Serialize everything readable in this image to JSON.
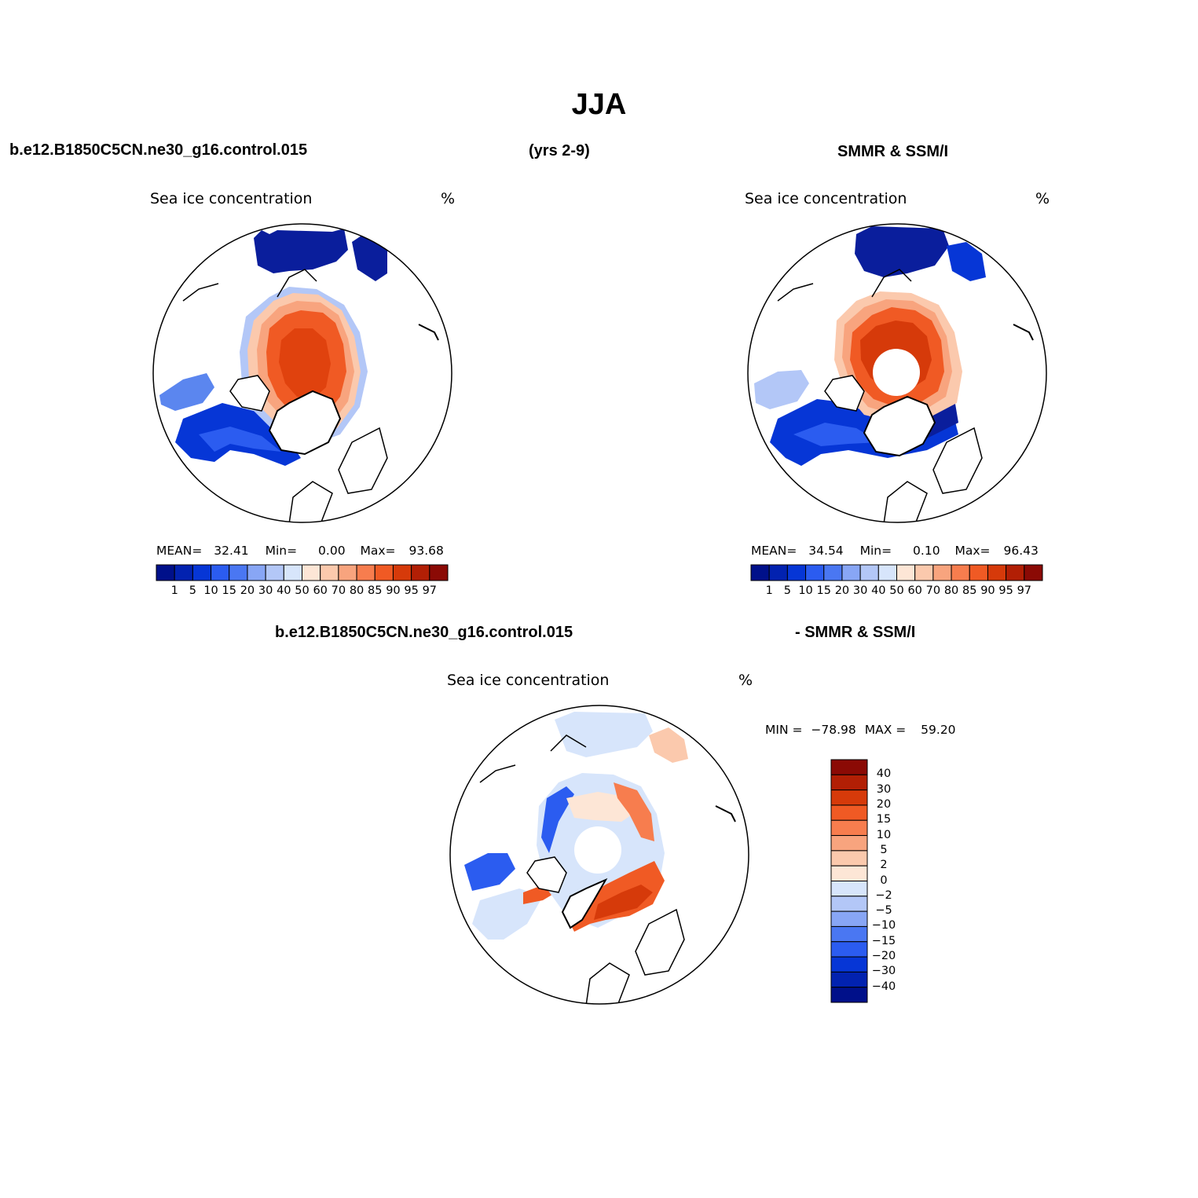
{
  "title": "JJA",
  "header": {
    "case_name": "b.e12.B1850C5CN.ne30_g16.control.015",
    "years": "(yrs 2-9)",
    "obs_name": "SMMR & SSM/I",
    "diff_case": "b.e12.B1850C5CN.ne30_g16.control.015",
    "diff_obs": "- SMMR & SSM/I"
  },
  "panels": [
    {
      "name": "model",
      "variable": "Sea ice concentration",
      "units": "%",
      "mean_label": "MEAN=",
      "mean": "32.41",
      "min_label": "Min=",
      "min": "0.00",
      "max_label": "Max=",
      "max": "93.68"
    },
    {
      "name": "obs",
      "variable": "Sea ice concentration",
      "units": "%",
      "mean_label": "MEAN=",
      "mean": "34.54",
      "min_label": "Min=",
      "min": "0.10",
      "max_label": "Max=",
      "max": "96.43"
    },
    {
      "name": "difference",
      "variable": "Sea ice concentration",
      "units": "%",
      "min_label": "MIN =",
      "min": "−78.98",
      "max_label": "MAX =",
      "max": "59.20"
    }
  ],
  "colorbar_main": {
    "labels": [
      "1",
      "5",
      "10",
      "15",
      "20",
      "30",
      "40",
      "50",
      "60",
      "70",
      "80",
      "85",
      "90",
      "95",
      "97"
    ],
    "colors": [
      "#00108a",
      "#0222b0",
      "#0636d6",
      "#2b5cf0",
      "#4a77f2",
      "#88a6f5",
      "#b3c7f7",
      "#d7e5fb",
      "#fde6d6",
      "#fbc9ad",
      "#f8a47e",
      "#f77d4e",
      "#f05a24",
      "#d63a0a",
      "#b21f05",
      "#8b0a05"
    ]
  },
  "colorbar_diff": {
    "labels": [
      "40",
      "30",
      "20",
      "15",
      "10",
      "5",
      "2",
      "0",
      "−2",
      "−5",
      "−10",
      "−15",
      "−20",
      "−30",
      "−40"
    ],
    "colors": [
      "#8b0a05",
      "#b21f05",
      "#d63a0a",
      "#f05a24",
      "#f77d4e",
      "#f8a47e",
      "#fbc9ad",
      "#fde6d6",
      "#d7e5fb",
      "#b3c7f7",
      "#88a6f5",
      "#4a77f2",
      "#2b5cf0",
      "#0636d6",
      "#0222b0",
      "#00108a"
    ]
  },
  "chart_data": {
    "type": "heatmap",
    "description_title": "JJA",
    "region": "Northern Hemisphere polar stereographic",
    "maps": [
      {
        "label": "b.e12.B1850C5CN.ne30_g16.control.015 (yrs 2-9)",
        "variable": "Sea ice concentration",
        "units": "%",
        "mean": 32.41,
        "min": 0.0,
        "max": 93.68
      },
      {
        "label": "SMMR & SSM/I",
        "variable": "Sea ice concentration",
        "units": "%",
        "mean": 34.54,
        "min": 0.1,
        "max": 96.43
      },
      {
        "label": "b.e12.B1850C5CN.ne30_g16.control.015 - SMMR & SSM/I",
        "variable": "Sea ice concentration",
        "units": "%",
        "min": -78.98,
        "max": 59.2
      }
    ],
    "contour_levels_main": [
      1,
      5,
      10,
      15,
      20,
      30,
      40,
      50,
      60,
      70,
      80,
      85,
      90,
      95,
      97
    ],
    "contour_levels_diff": [
      -40,
      -30,
      -20,
      -15,
      -10,
      -5,
      -2,
      0,
      2,
      5,
      10,
      15,
      20,
      30,
      40
    ]
  }
}
